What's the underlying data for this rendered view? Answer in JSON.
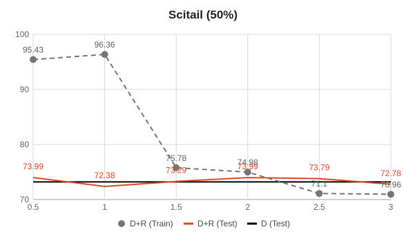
{
  "chart_data": {
    "type": "line",
    "title": "Scitail (50%)",
    "xlabel": "",
    "ylabel": "",
    "x": [
      0.5,
      1,
      1.5,
      2,
      2.5,
      3
    ],
    "x_tick_labels": [
      "0.5",
      "1",
      "1.5",
      "2",
      "2.5",
      "3"
    ],
    "xlim": [
      0.5,
      3
    ],
    "ylim": [
      70,
      100
    ],
    "y_ticks": [
      70,
      80,
      90,
      100
    ],
    "y_tick_labels": [
      "70",
      "80",
      "90",
      "100"
    ],
    "grid": true,
    "legend_position": "bottom",
    "series": [
      {
        "name": "D+R (Train)",
        "style": "dashed-with-markers",
        "color": "#757575",
        "values": [
          95.43,
          96.36,
          75.78,
          74.98,
          71.1,
          70.96
        ],
        "labels": [
          "95.43",
          "96.36",
          "75.78",
          "74.98",
          "71.1",
          "70.96"
        ]
      },
      {
        "name": "D+R (Test)",
        "style": "solid",
        "color": "#e0451f",
        "values": [
          73.99,
          72.38,
          73.29,
          73.99,
          73.79,
          72.78
        ],
        "labels": [
          "73.99",
          "72.38",
          "73.29",
          "73.99",
          "73.79",
          "72.78"
        ]
      },
      {
        "name": "D (Test)",
        "style": "solid",
        "color": "#000000",
        "values": [
          73.2,
          73.2,
          73.2,
          73.2,
          73.2,
          73.2
        ]
      }
    ]
  }
}
